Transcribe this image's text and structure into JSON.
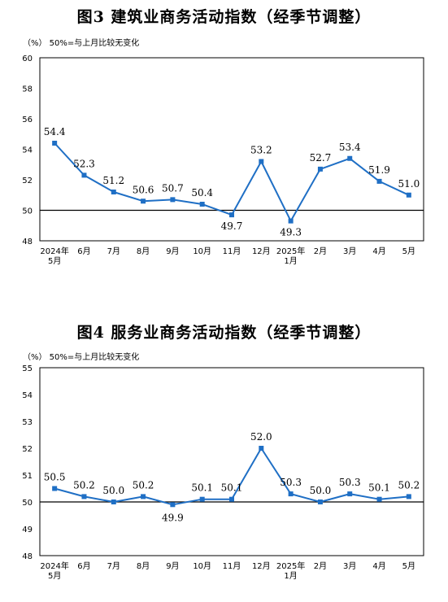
{
  "colors": {
    "line": "#1f6fc5",
    "frame": "#000000"
  },
  "chart_data": [
    {
      "type": "line",
      "title": "图3  建筑业商务活动指数（经季节调整）",
      "note": "（%）  50%=与上月比较无变化",
      "categories": [
        [
          "2024年",
          "5月"
        ],
        [
          "6月"
        ],
        [
          "7月"
        ],
        [
          "8月"
        ],
        [
          "9月"
        ],
        [
          "10月"
        ],
        [
          "11月"
        ],
        [
          "12月"
        ],
        [
          "2025年",
          "1月"
        ],
        [
          "2月"
        ],
        [
          "3月"
        ],
        [
          "4月"
        ],
        [
          "5月"
        ]
      ],
      "yticks": [
        "48",
        "50",
        "52",
        "54",
        "56",
        "58",
        "60"
      ],
      "ylim": [
        48,
        60
      ],
      "reference": 50,
      "series": [
        {
          "values": [
            54.4,
            52.3,
            51.2,
            50.6,
            50.7,
            50.4,
            49.7,
            53.2,
            49.3,
            52.7,
            53.4,
            51.9,
            51.0
          ],
          "labels": [
            "54.4",
            "52.3",
            "51.2",
            "50.6",
            "50.7",
            "50.4",
            "49.7",
            "53.2",
            "49.3",
            "52.7",
            "53.4",
            "51.9",
            "51.0"
          ]
        }
      ]
    },
    {
      "type": "line",
      "title": "图4  服务业商务活动指数（经季节调整）",
      "note": "（%）  50%=与上月比较无变化",
      "categories": [
        [
          "2024年",
          "5月"
        ],
        [
          "6月"
        ],
        [
          "7月"
        ],
        [
          "8月"
        ],
        [
          "9月"
        ],
        [
          "10月"
        ],
        [
          "11月"
        ],
        [
          "12月"
        ],
        [
          "2025年",
          "1月"
        ],
        [
          "2月"
        ],
        [
          "3月"
        ],
        [
          "4月"
        ],
        [
          "5月"
        ]
      ],
      "yticks": [
        "48",
        "49",
        "50",
        "51",
        "52",
        "53",
        "54",
        "55"
      ],
      "ylim": [
        48,
        55
      ],
      "reference": 50,
      "series": [
        {
          "values": [
            50.5,
            50.2,
            50.0,
            50.2,
            49.9,
            50.1,
            50.1,
            52.0,
            50.3,
            50.0,
            50.3,
            50.1,
            50.2
          ],
          "labels": [
            "50.5",
            "50.2",
            "50.0",
            "50.2",
            "49.9",
            "50.1",
            "50.1",
            "52.0",
            "50.3",
            "50.0",
            "50.3",
            "50.1",
            "50.2"
          ]
        }
      ]
    }
  ]
}
